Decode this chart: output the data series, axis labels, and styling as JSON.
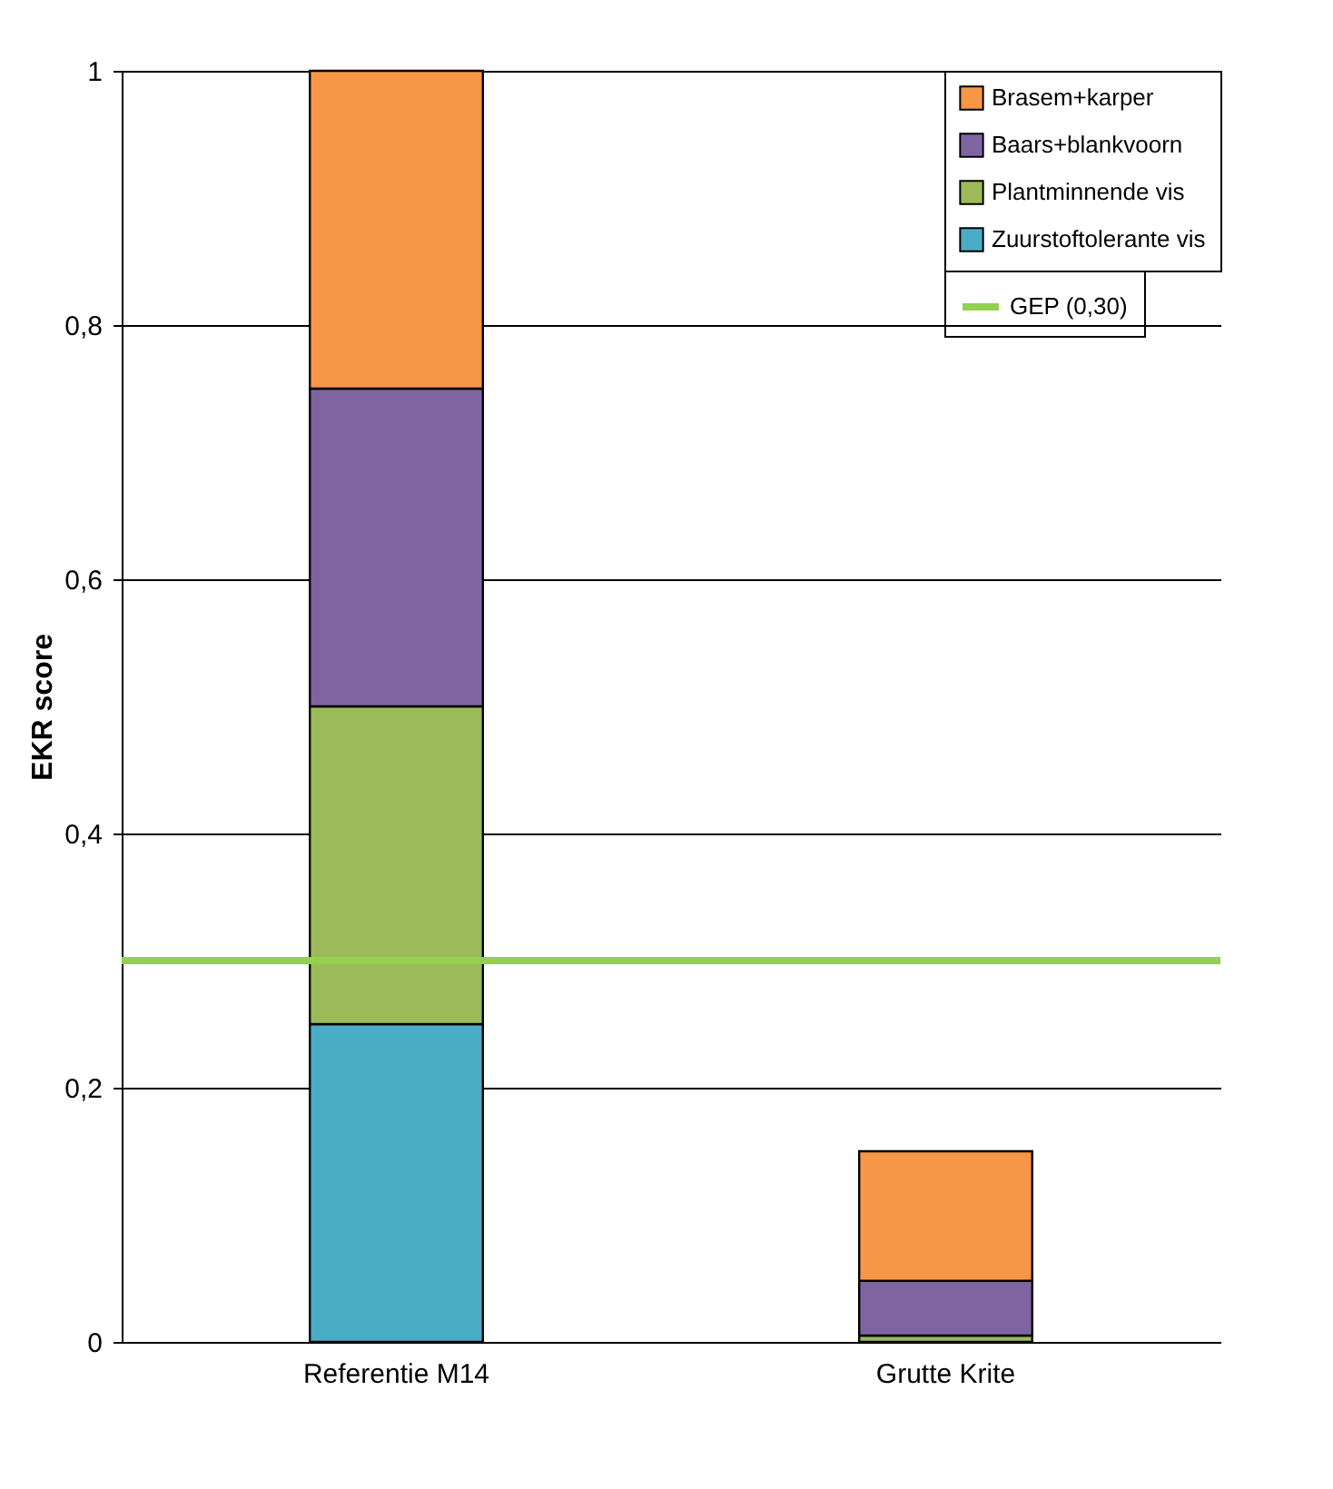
{
  "chart_data": {
    "type": "bar",
    "stacked": true,
    "ylabel": "EKR  score",
    "categories": [
      "Referentie M14",
      "Grutte Krite"
    ],
    "series": [
      {
        "name": "Zuurstoftolerante vis",
        "color": "#4bacc6",
        "values": [
          0.25,
          0
        ]
      },
      {
        "name": "Plantminnende vis",
        "color": "#9bbb59",
        "values": [
          0.25,
          0.005
        ]
      },
      {
        "name": "Baars+blankvoorn",
        "color": "#8064a2",
        "values": [
          0.25,
          0.043
        ]
      },
      {
        "name": "Brasem+karper",
        "color": "#f79646",
        "values": [
          0.25,
          0.102
        ]
      }
    ],
    "ref_lines": [
      {
        "axis": "y",
        "value": 0.3,
        "label": "GEP (0,30)",
        "color": "#92d050"
      }
    ],
    "ylim": [
      0,
      1
    ],
    "yticks": [
      {
        "value": 0,
        "label": "0"
      },
      {
        "value": 0.2,
        "label": "0,2"
      },
      {
        "value": 0.4,
        "label": "0,4"
      },
      {
        "value": 0.6,
        "label": "0,6"
      },
      {
        "value": 0.8,
        "label": "0,8"
      },
      {
        "value": 1,
        "label": "1"
      }
    ],
    "grid": "y",
    "legend": "top right"
  }
}
